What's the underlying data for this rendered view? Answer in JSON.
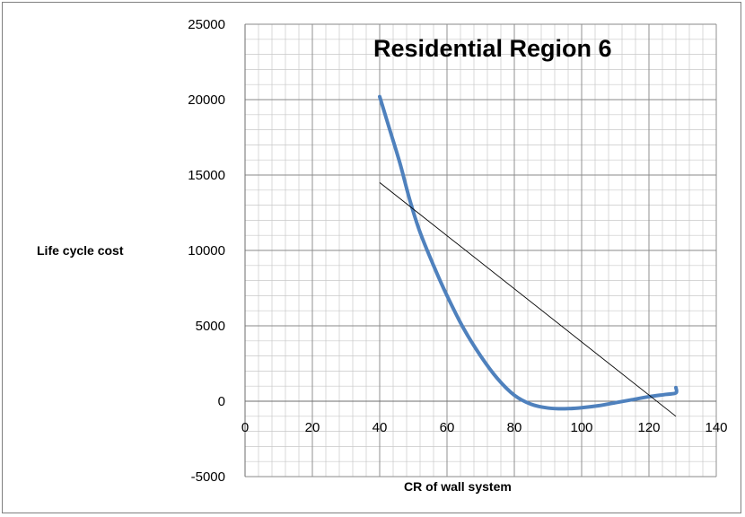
{
  "chart_data": {
    "type": "line",
    "title": "Residential Region 6",
    "xlabel": "CR of wall system",
    "ylabel": "Life cycle cost",
    "xlim": [
      0,
      140
    ],
    "ylim": [
      -5000,
      25000
    ],
    "x_ticks": [
      "0",
      "20",
      "40",
      "60",
      "80",
      "100",
      "120",
      "140"
    ],
    "y_ticks": [
      "25000",
      "20000",
      "15000",
      "10000",
      "5000",
      "0",
      "-5000"
    ],
    "grid": true,
    "legend": "none",
    "series": [
      {
        "style": "thick",
        "color": "#4f81bd",
        "x": [
          40,
          43,
          46,
          49,
          52,
          56,
          60,
          65,
          70,
          75,
          80,
          85,
          90,
          95,
          100,
          105,
          110,
          115,
          120,
          125,
          128,
          128
        ],
        "y": [
          20200,
          18000,
          15800,
          13300,
          11200,
          9000,
          7000,
          4800,
          3000,
          1500,
          400,
          -200,
          -450,
          -500,
          -430,
          -300,
          -100,
          100,
          300,
          450,
          550,
          900
        ]
      },
      {
        "style": "thin",
        "color": "#000000",
        "x": [
          40,
          128
        ],
        "y": [
          14500,
          -1000
        ]
      }
    ]
  }
}
